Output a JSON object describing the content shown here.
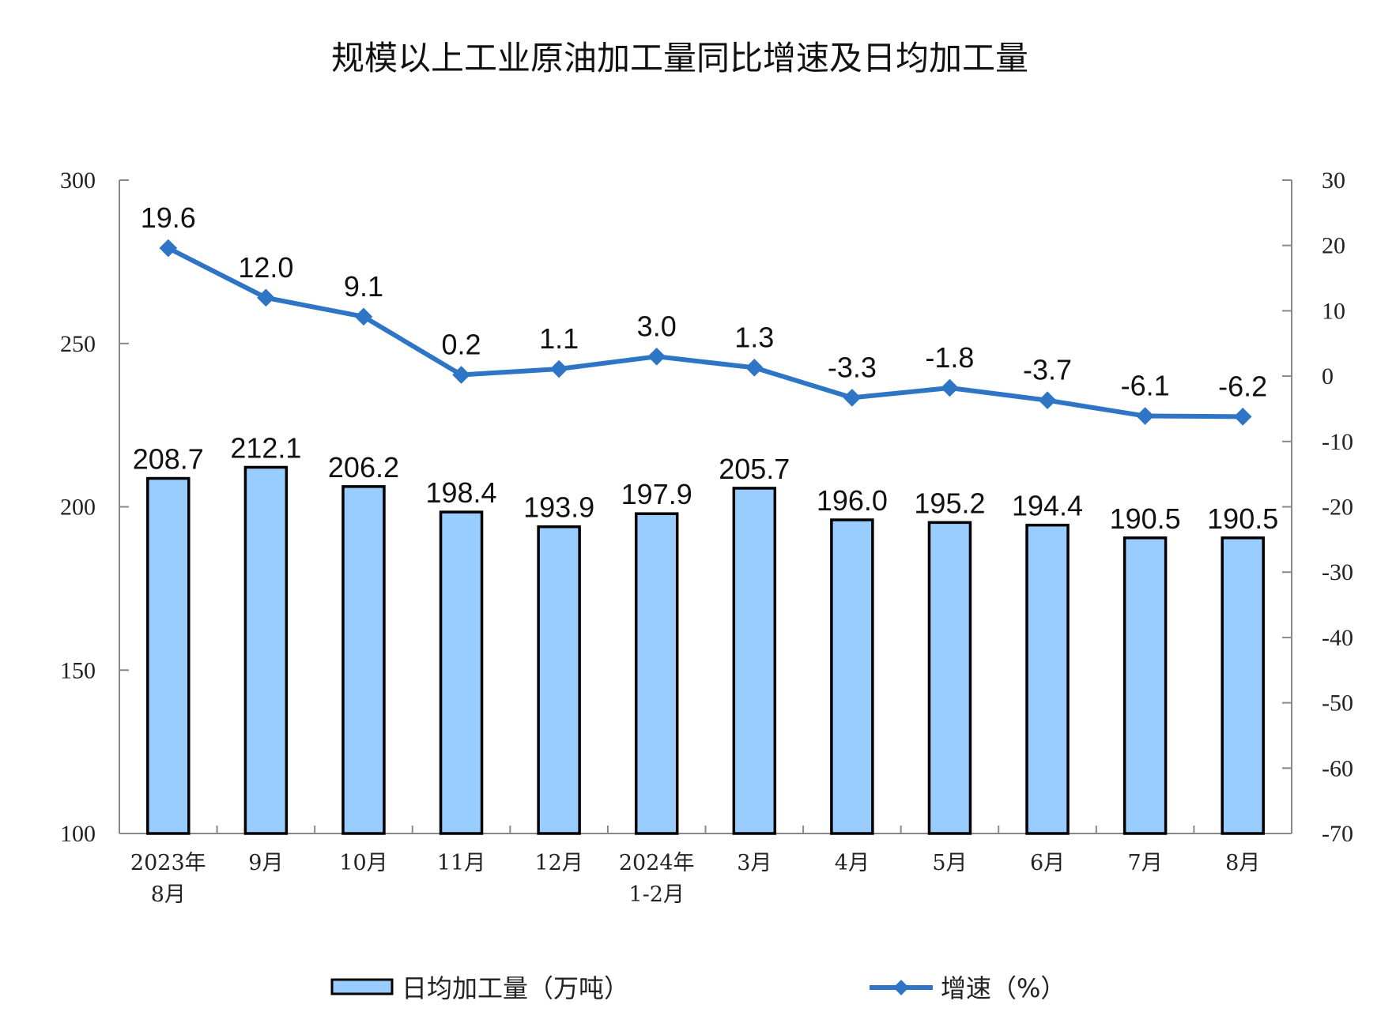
{
  "chart_data": {
    "type": "bar+line",
    "title": "规模以上工业原油加工量同比增速及日均加工量",
    "categories": [
      [
        "2023年",
        "8月"
      ],
      [
        "9月"
      ],
      [
        "10月"
      ],
      [
        "11月"
      ],
      [
        "12月"
      ],
      [
        "2024年",
        "1-2月"
      ],
      [
        "3月"
      ],
      [
        "4月"
      ],
      [
        "5月"
      ],
      [
        "6月"
      ],
      [
        "7月"
      ],
      [
        "8月"
      ]
    ],
    "series": [
      {
        "name": "日均加工量（万吨）",
        "type": "bar",
        "axis": "left",
        "color": "#99CCFF",
        "values": [
          208.7,
          212.1,
          206.2,
          198.4,
          193.9,
          197.9,
          205.7,
          196.0,
          195.2,
          194.4,
          190.5,
          190.5
        ],
        "labels": [
          "208.7",
          "212.1",
          "206.2",
          "198.4",
          "193.9",
          "197.9",
          "205.7",
          "196.0",
          "195.2",
          "194.4",
          "190.5",
          "190.5"
        ]
      },
      {
        "name": "增速（%）",
        "type": "line",
        "axis": "right",
        "color": "#2E75C6",
        "values": [
          19.6,
          12.0,
          9.1,
          0.2,
          1.1,
          3.0,
          1.3,
          -3.3,
          -1.8,
          -3.7,
          -6.1,
          -6.2
        ],
        "labels": [
          "19.6",
          "12.0",
          "9.1",
          "0.2",
          "1.1",
          "3.0",
          "1.3",
          "-3.3",
          "-1.8",
          "-3.7",
          "-6.1",
          "-6.2"
        ]
      }
    ],
    "left_axis": {
      "ylim": [
        100,
        300
      ],
      "ticks": [
        "100",
        "150",
        "200",
        "250",
        "300"
      ]
    },
    "right_axis": {
      "ylim": [
        -70,
        30
      ],
      "ticks": [
        "-70",
        "-60",
        "-50",
        "-40",
        "-30",
        "-20",
        "-10",
        "0",
        "10",
        "20",
        "30"
      ]
    },
    "grid": false,
    "legend_position": "bottom"
  }
}
